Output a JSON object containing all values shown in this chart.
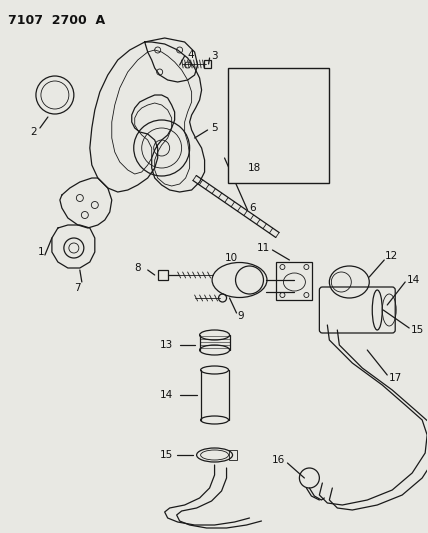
{
  "title": "7107 2700 A",
  "bg_color": "#e8e8e3",
  "line_color": "#1a1a1a",
  "text_color": "#111111",
  "title_fontsize": 9,
  "label_fontsize": 7.5,
  "figsize": [
    4.28,
    5.33
  ],
  "dpi": 100
}
